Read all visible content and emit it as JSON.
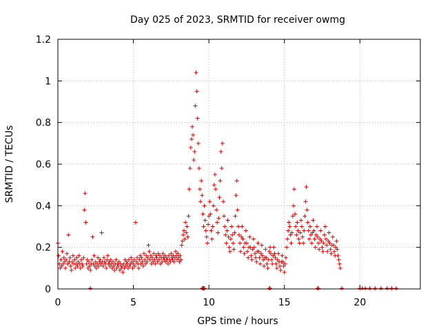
{
  "chart_data": {
    "type": "scatter",
    "title": "Day 025 of 2023, SRMTID for receiver owmg",
    "xlabel": "GPS time / hours",
    "ylabel": "SRMTID / TECUs",
    "xlim": [
      0,
      24
    ],
    "ylim": [
      0,
      1.2
    ],
    "xticks": [
      0,
      5,
      10,
      15,
      20
    ],
    "yticks": [
      0,
      0.2,
      0.4,
      0.6,
      0.8,
      1,
      1.2
    ],
    "xtick_labels": [
      "0",
      "5",
      "10",
      "15",
      "20"
    ],
    "ytick_labels": [
      "0",
      "0.2",
      "0.4",
      "0.6",
      "0.8",
      "1",
      "1.2"
    ],
    "grid": true,
    "marker": "+",
    "color": "#e00000",
    "series": [
      {
        "name": "SRMTID",
        "sample_step_hours": 0.05,
        "x_start": 0.0,
        "values": [
          0.22,
          0.16,
          0.12,
          0.1,
          0.14,
          0.11,
          0.18,
          0.12,
          0.15,
          0.13,
          0.1,
          0.14,
          0.17,
          0.12,
          0.26,
          0.13,
          0.15,
          0.11,
          0.09,
          0.13,
          0.16,
          0.12,
          0.14,
          0.1,
          0.12,
          0.15,
          0.11,
          0.13,
          0.16,
          0.12,
          0.1,
          0.14,
          0.12,
          0.11,
          0.15,
          0.38,
          0.46,
          0.32,
          0.12,
          0.14,
          0.1,
          0.13,
          0.11,
          0.09,
          0.12,
          0.14,
          0.25,
          0.12,
          0.16,
          0.11,
          0.13,
          0.1,
          0.12,
          0.15,
          0.11,
          0.13,
          0.14,
          0.12,
          0.27,
          0.13,
          0.11,
          0.15,
          0.13,
          0.12,
          0.1,
          0.14,
          0.16,
          0.12,
          0.13,
          0.11,
          0.14,
          0.12,
          0.1,
          0.13,
          0.11,
          0.09,
          0.12,
          0.14,
          0.1,
          0.12,
          0.11,
          0.13,
          0.09,
          0.12,
          0.1,
          0.11,
          0.08,
          0.12,
          0.1,
          0.14,
          0.11,
          0.13,
          0.12,
          0.1,
          0.14,
          0.11,
          0.12,
          0.15,
          0.13,
          0.1,
          0.12,
          0.14,
          0.11,
          0.32,
          0.13,
          0.15,
          0.12,
          0.1,
          0.14,
          0.16,
          0.12,
          0.15,
          0.13,
          0.11,
          0.17,
          0.14,
          0.12,
          0.16,
          0.13,
          0.15,
          0.21,
          0.18,
          0.14,
          0.16,
          0.12,
          0.15,
          0.13,
          0.17,
          0.14,
          0.12,
          0.16,
          0.15,
          0.13,
          0.17,
          0.14,
          0.16,
          0.12,
          0.15,
          0.13,
          0.17,
          0.15,
          0.14,
          0.16,
          0.13,
          0.15,
          0.14,
          0.12,
          0.16,
          0.14,
          0.13,
          0.17,
          0.15,
          0.14,
          0.16,
          0.13,
          0.15,
          0.18,
          0.16,
          0.14,
          0.17,
          0.15,
          0.13,
          0.16,
          0.14,
          0.21,
          0.23,
          0.26,
          0.28,
          0.24,
          0.32,
          0.27,
          0.3,
          0.25,
          0.35,
          0.48,
          0.58,
          0.68,
          0.72,
          0.78,
          0.74,
          0.62,
          0.66,
          0.88,
          1.04,
          0.95,
          0.82,
          0.7,
          0.58,
          0.48,
          0.42,
          0.52,
          0.45,
          0.36,
          0.3,
          0.4,
          0.33,
          0.28,
          0.25,
          0.22,
          0.31,
          0.35,
          0.42,
          0.36,
          0.28,
          0.24,
          0.3,
          0.4,
          0.5,
          0.55,
          0.48,
          0.38,
          0.32,
          0.27,
          0.34,
          0.44,
          0.52,
          0.66,
          0.58,
          0.7,
          0.42,
          0.35,
          0.3,
          0.26,
          0.22,
          0.28,
          0.33,
          0.25,
          0.2,
          0.18,
          0.24,
          0.3,
          0.26,
          0.22,
          0.19,
          0.27,
          0.35,
          0.45,
          0.52,
          0.38,
          0.3,
          0.26,
          0.22,
          0.18,
          0.25,
          0.3,
          0.24,
          0.2,
          0.17,
          0.22,
          0.28,
          0.22,
          0.18,
          0.15,
          0.2,
          0.25,
          0.2,
          0.16,
          0.14,
          0.19,
          0.24,
          0.2,
          0.17,
          0.15,
          0.13,
          0.18,
          0.22,
          0.18,
          0.15,
          0.12,
          0.17,
          0.21,
          0.16,
          0.14,
          0.11,
          0.15,
          0.19,
          0.15,
          0.12,
          0.1,
          0.14,
          0.18,
          0.2,
          0.17,
          0.14,
          0.12,
          0.16,
          0.2,
          0.17,
          0.15,
          0.12,
          0.1,
          0.14,
          0.17,
          0.13,
          0.11,
          0.09,
          0.13,
          0.16,
          0.13,
          0.11,
          0.08,
          0.12,
          0.15,
          0.2,
          0.24,
          0.28,
          0.32,
          0.3,
          0.26,
          0.22,
          0.27,
          0.35,
          0.4,
          0.48,
          0.36,
          0.3,
          0.26,
          0.32,
          0.28,
          0.24,
          0.22,
          0.27,
          0.33,
          0.3,
          0.25,
          0.22,
          0.28,
          0.35,
          0.42,
          0.49,
          0.38,
          0.32,
          0.28,
          0.24,
          0.3,
          0.26,
          0.22,
          0.27,
          0.33,
          0.28,
          0.24,
          0.2,
          0.26,
          0.3,
          0.25,
          0.22,
          0.19,
          0.24,
          0.28,
          0.23,
          0.2,
          0.18,
          0.22,
          0.26,
          0.3,
          0.24,
          0.21,
          0.18,
          0.23,
          0.27,
          0.22,
          0.19,
          0.17,
          0.21,
          0.25,
          0.21,
          0.18,
          0.16,
          0.2,
          0.23,
          0.19,
          0.16,
          0.14,
          0.12,
          0.1
        ]
      }
    ],
    "bottom_markers_hours": [
      2.15,
      9.55,
      9.6,
      9.65,
      9.7,
      17.2,
      17.25,
      18.8,
      20.0,
      20.15,
      20.35,
      20.65,
      21.0,
      21.4,
      21.8,
      22.1,
      22.4
    ],
    "zero_markers_hours": [
      14.0,
      14.05
    ]
  }
}
